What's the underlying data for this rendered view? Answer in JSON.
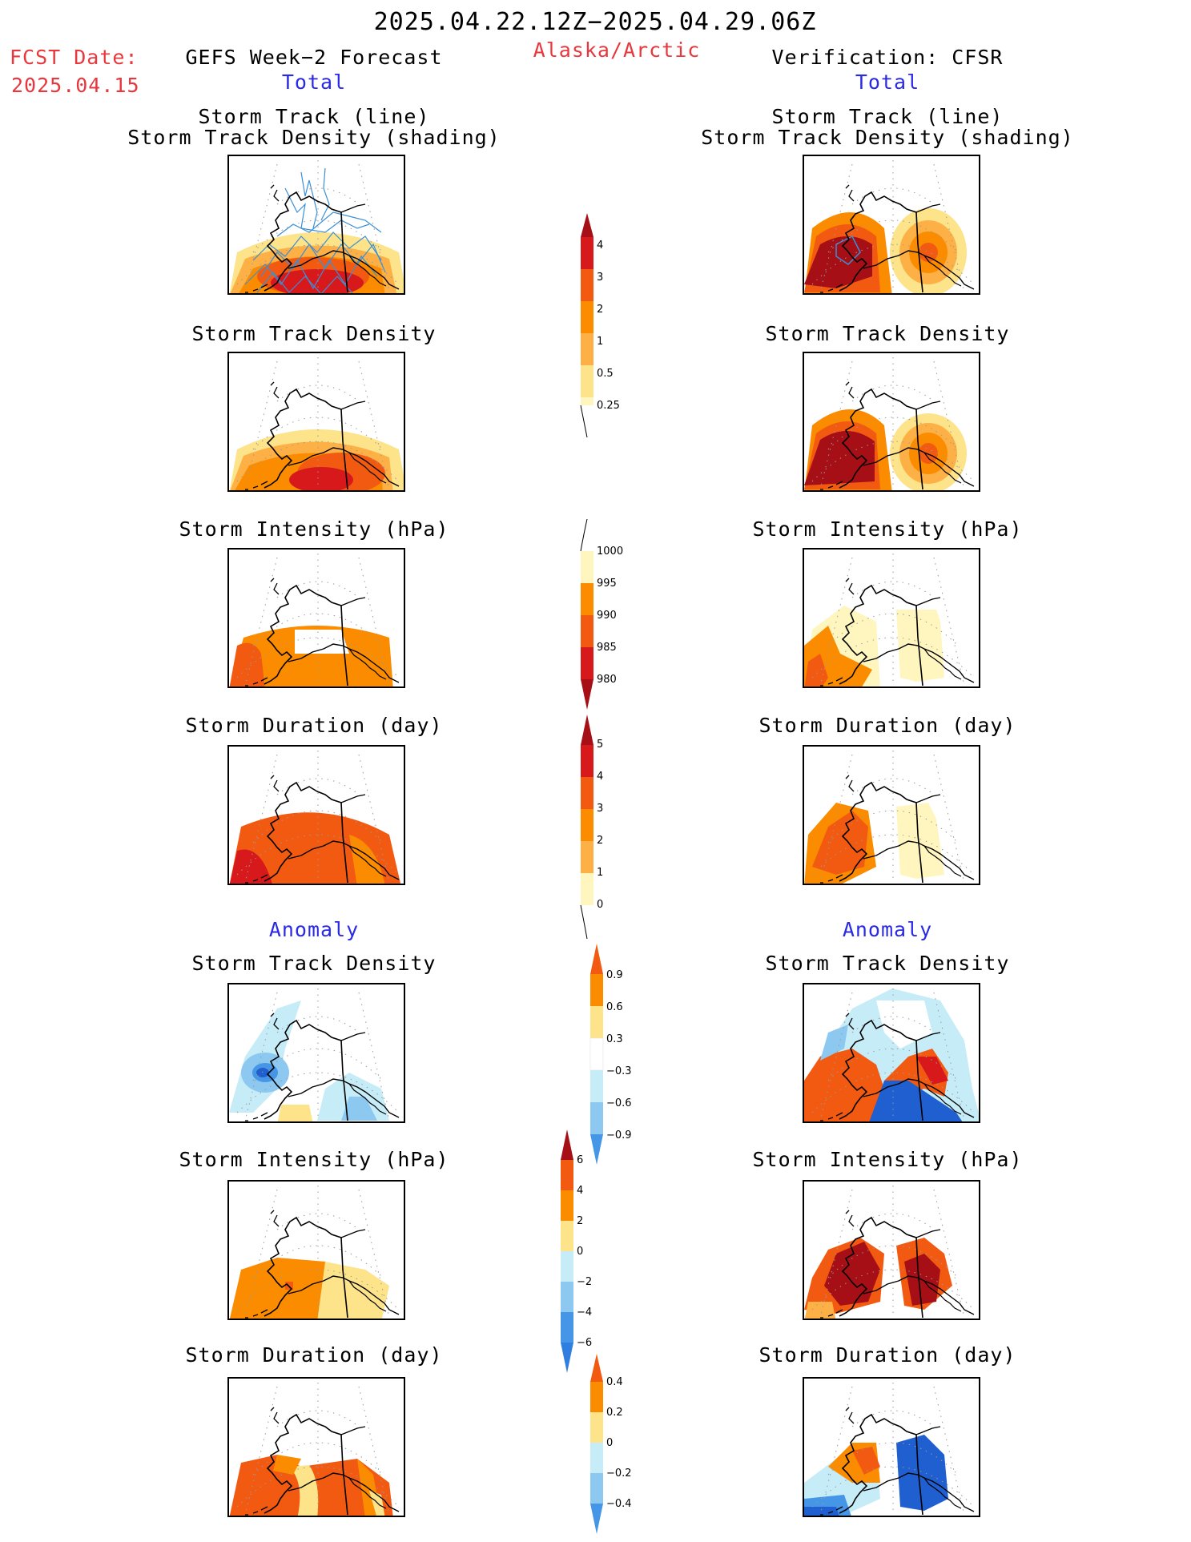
{
  "header": {
    "date_range": "2025.04.22.12Z−2025.04.29.06Z",
    "region": "Alaska/Arctic",
    "fcst_label": "FCST Date:",
    "fcst_date": "2025.04.15",
    "left_title": "GEFS Week−2 Forecast",
    "right_title": "Verification: CFSR",
    "total_label": "Total",
    "anomaly_label": "Anomaly"
  },
  "panels": {
    "track_line_1": "Storm Track (line)",
    "track_line_2": "Storm Track Density (shading)",
    "track_density": "Storm Track Density",
    "intensity": "Storm Intensity (hPa)",
    "duration": "Storm Duration (day)"
  },
  "colorbars": {
    "density": [
      "4",
      "3",
      "2",
      "1",
      "0.5",
      "0.25"
    ],
    "intensity": [
      "1000",
      "995",
      "990",
      "985",
      "980"
    ],
    "duration": [
      "5",
      "4",
      "3",
      "2",
      "1",
      "0"
    ],
    "anom_density": [
      "0.9",
      "0.6",
      "0.3",
      "−0.3",
      "−0.6",
      "−0.9"
    ],
    "anom_intensity": [
      "6",
      "4",
      "2",
      "0",
      "−2",
      "−4",
      "−6"
    ],
    "anom_duration": [
      "0.4",
      "0.2",
      "0",
      "−0.2",
      "−0.4"
    ]
  },
  "colors": {
    "text_red": "#e8383d",
    "text_blue": "#2929e6",
    "dark_red": "#a50f15",
    "red": "#d7191c",
    "red_orange": "#f25a12",
    "orange": "#fb8c00",
    "light_orange": "#fdb045",
    "yellow": "#fde38a",
    "pale_yellow": "#fff6bf",
    "pale_blue": "#c6ecf7",
    "light_blue": "#8cc8f0",
    "mid_blue": "#4596e6",
    "dark_blue": "#1f5fcf",
    "track_line": "#3a8fd8"
  }
}
